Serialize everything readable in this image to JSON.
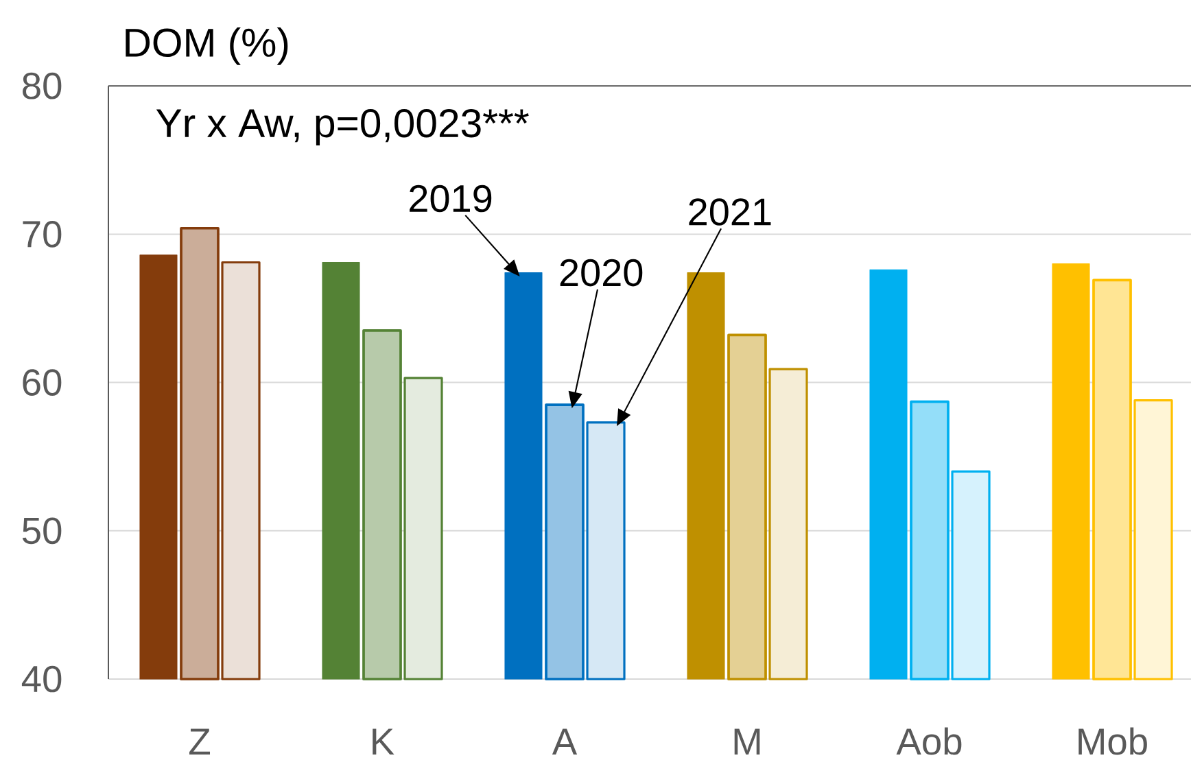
{
  "chart_data": {
    "type": "bar",
    "ylabel": "DOM (%)",
    "annotations": [
      "Yr x Aw, p=0,0023***"
    ],
    "categories": [
      "Z",
      "K",
      "A",
      "M",
      "Aob",
      "Mob"
    ],
    "series": [
      {
        "name": "2019",
        "colors": [
          "#843c0c",
          "#548235",
          "#0070c0",
          "#bf9000",
          "#00b0f0",
          "#ffc000"
        ],
        "values": [
          68.6,
          68.1,
          67.4,
          67.4,
          67.6,
          68.0
        ]
      },
      {
        "name": "2020",
        "colors": [
          "#843c0c",
          "#548235",
          "#0070c0",
          "#bf9000",
          "#00b0f0",
          "#ffc000"
        ],
        "values": [
          70.4,
          63.5,
          58.5,
          63.2,
          58.7,
          66.9
        ]
      },
      {
        "name": "2021",
        "colors": [
          "#843c0c",
          "#548235",
          "#0070c0",
          "#bf9000",
          "#00b0f0",
          "#ffc000"
        ],
        "values": [
          68.1,
          60.3,
          57.3,
          60.9,
          54.0,
          58.8
        ]
      }
    ],
    "ylim": [
      40,
      80
    ],
    "yticks": [
      40,
      50,
      60,
      70,
      80
    ],
    "grid": "y"
  }
}
